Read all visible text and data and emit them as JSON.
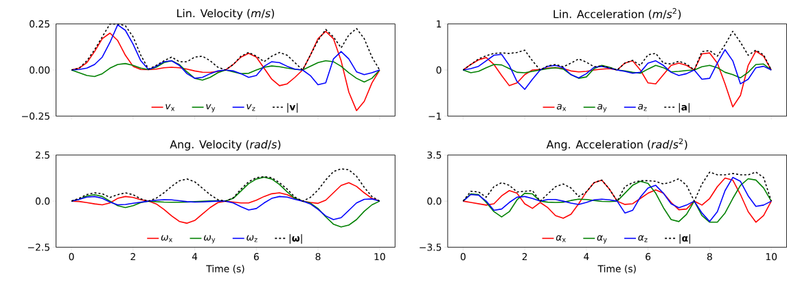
{
  "chart_data": [
    {
      "type": "line",
      "title": "Lin. Velocity (*m*/*s*)",
      "xlim": [
        -0.5,
        10.5
      ],
      "ylim": [
        -0.25,
        0.25
      ],
      "xticks": [
        0,
        2,
        4,
        6,
        8,
        10
      ],
      "yticks": [
        {
          "value": -0.25,
          "label": "−0.25"
        },
        {
          "value": 0,
          "label": "0.00"
        },
        {
          "value": 0.25,
          "label": "0.25"
        }
      ],
      "tick_labels": "y",
      "legend": "bottom",
      "line_style": "solid",
      "x": [
        0,
        0.25,
        0.5,
        0.75,
        1,
        1.25,
        1.5,
        1.75,
        2,
        2.25,
        2.5,
        2.75,
        3,
        3.25,
        3.5,
        3.75,
        4,
        4.25,
        4.5,
        4.75,
        5,
        5.25,
        5.5,
        5.75,
        6,
        6.25,
        6.5,
        6.75,
        7,
        7.25,
        7.5,
        7.75,
        8,
        8.25,
        8.5,
        8.75,
        9,
        9.25,
        9.5,
        9.75,
        10
      ],
      "series": [
        {
          "name": "*v*$_{x}$",
          "color": "#ff0000",
          "values": [
            0,
            0.01,
            0.04,
            0.1,
            0.17,
            0.2,
            0.16,
            0.08,
            0.02,
            0.003,
            0.002,
            0.005,
            0.012,
            0.015,
            0.012,
            0.005,
            -0.005,
            -0.012,
            -0.013,
            -0.008,
            0,
            0.03,
            0.07,
            0.09,
            0.07,
            0.01,
            -0.05,
            -0.085,
            -0.075,
            -0.04,
            0,
            0.08,
            0.17,
            0.21,
            0.17,
            0.05,
            -0.12,
            -0.22,
            -0.17,
            -0.07,
            0
          ]
        },
        {
          "name": "*v*$_{y}$",
          "color": "#008000",
          "values": [
            0,
            -0.015,
            -0.03,
            -0.035,
            -0.02,
            0.01,
            0.03,
            0.035,
            0.025,
            0.01,
            0.002,
            0.015,
            0.04,
            0.05,
            0.03,
            -0.01,
            -0.045,
            -0.055,
            -0.04,
            -0.015,
            0,
            -0.01,
            -0.02,
            -0.018,
            0,
            0.015,
            0.022,
            0.018,
            0.01,
            0.004,
            0,
            0.02,
            0.04,
            0.05,
            0.045,
            0.02,
            -0.015,
            -0.045,
            -0.065,
            -0.045,
            0
          ]
        },
        {
          "name": "*v*$_{z}$",
          "color": "#0000ff",
          "values": [
            0,
            0.003,
            0.01,
            0.03,
            0.07,
            0.15,
            0.245,
            0.215,
            0.14,
            0.05,
            0.003,
            0.02,
            0.045,
            0.05,
            0.025,
            -0.02,
            -0.045,
            -0.04,
            -0.02,
            -0.005,
            0,
            -0.005,
            -0.02,
            -0.04,
            -0.03,
            0.02,
            0.045,
            0.04,
            0.02,
            0.005,
            0,
            -0.03,
            -0.08,
            -0.07,
            0.06,
            0.1,
            0.06,
            -0.01,
            -0.025,
            -0.015,
            0
          ]
        },
        {
          "name": "|**v**|",
          "color": "#000000",
          "line_style": "dashed",
          "values": [
            0,
            0.01,
            0.05,
            0.11,
            0.18,
            0.25,
            0.25,
            0.24,
            0.18,
            0.08,
            0.005,
            0.025,
            0.05,
            0.07,
            0.045,
            0.045,
            0.07,
            0.075,
            0.05,
            0.015,
            0,
            0.03,
            0.075,
            0.095,
            0.075,
            0.045,
            0.075,
            0.095,
            0.08,
            0.04,
            0,
            0.08,
            0.16,
            0.22,
            0.18,
            0.12,
            0.19,
            0.225,
            0.17,
            0.07,
            0
          ]
        }
      ]
    },
    {
      "type": "line",
      "title": "Lin. Acceleration (*m*/*s*$^{2}$)",
      "xlim": [
        -0.5,
        10.5
      ],
      "ylim": [
        -1,
        1
      ],
      "xticks": [
        0,
        2,
        4,
        6,
        8,
        10
      ],
      "yticks": [
        {
          "value": -1,
          "label": "−1"
        },
        0,
        1
      ],
      "tick_labels": "y",
      "legend": "bottom",
      "line_style": "solid",
      "x": [
        0,
        0.25,
        0.5,
        0.75,
        1,
        1.25,
        1.5,
        1.75,
        2,
        2.25,
        2.5,
        2.75,
        3,
        3.25,
        3.5,
        3.75,
        4,
        4.25,
        4.5,
        4.75,
        5,
        5.25,
        5.5,
        5.75,
        6,
        6.25,
        6.5,
        6.75,
        7,
        7.25,
        7.5,
        7.75,
        8,
        8.25,
        8.5,
        8.75,
        9,
        9.25,
        9.5,
        9.75,
        10
      ],
      "series": [
        {
          "name": "*a*$_{x}$",
          "color": "#ff0000",
          "values": [
            0,
            0.12,
            0.22,
            0.27,
            0.12,
            -0.12,
            -0.34,
            -0.28,
            -0.1,
            0,
            0.01,
            0.04,
            0.05,
            0.03,
            -0.02,
            -0.04,
            -0.03,
            0,
            0.02,
            0.03,
            0,
            0.15,
            0.2,
            0,
            -0.28,
            -0.3,
            -0.1,
            0.1,
            0.15,
            0.1,
            0,
            0.35,
            0.37,
            0.15,
            -0.3,
            -0.8,
            -0.55,
            0.1,
            0.41,
            0.3,
            0
          ]
        },
        {
          "name": "*a*$_{y}$",
          "color": "#008000",
          "values": [
            0,
            -0.06,
            -0.03,
            0.05,
            0.12,
            0.11,
            0.03,
            -0.05,
            -0.06,
            -0.03,
            0,
            0.03,
            0.05,
            0.02,
            -0.1,
            -0.18,
            -0.15,
            0.03,
            0.1,
            0.06,
            0,
            -0.02,
            -0.05,
            -0.07,
            0.02,
            0.1,
            0.05,
            -0.04,
            -0.03,
            -0.01,
            0,
            0.07,
            0.1,
            0.05,
            -0.05,
            -0.1,
            -0.17,
            -0.05,
            0.12,
            0.13,
            0
          ]
        },
        {
          "name": "*a*$_{z}$",
          "color": "#0000ff",
          "values": [
            0,
            0.03,
            0.08,
            0.2,
            0.32,
            0.34,
            0.1,
            -0.25,
            -0.42,
            -0.2,
            0,
            0.08,
            0.1,
            0.05,
            -0.1,
            -0.17,
            -0.08,
            0.06,
            0.08,
            0.04,
            0,
            -0.03,
            -0.07,
            -0.05,
            0.15,
            0.2,
            0.1,
            -0.05,
            -0.12,
            -0.08,
            0,
            -0.2,
            -0.18,
            0.15,
            0.44,
            0.2,
            -0.3,
            -0.2,
            0.05,
            0.08,
            0
          ]
        },
        {
          "name": "|**a**|",
          "color": "#000000",
          "line_style": "dashed",
          "values": [
            0,
            0.12,
            0.24,
            0.31,
            0.36,
            0.37,
            0.36,
            0.38,
            0.43,
            0.2,
            0,
            0.09,
            0.12,
            0.07,
            0.15,
            0.24,
            0.17,
            0.07,
            0.09,
            0.05,
            0,
            0.15,
            0.21,
            0.1,
            0.33,
            0.36,
            0.15,
            0.13,
            0.19,
            0.13,
            0,
            0.4,
            0.42,
            0.3,
            0.55,
            0.84,
            0.6,
            0.32,
            0.43,
            0.33,
            0
          ]
        }
      ]
    },
    {
      "type": "line",
      "title": "Ang. Velocity (*rad*/*s*)",
      "xlabel": "Time (s)",
      "xlim": [
        -0.5,
        10.5
      ],
      "ylim": [
        -2.5,
        2.5
      ],
      "xticks": [
        0,
        2,
        4,
        6,
        8,
        10
      ],
      "yticks": [
        {
          "value": -2.5,
          "label": "−2.5"
        },
        {
          "value": 0,
          "label": "0.0"
        },
        2.5
      ],
      "legend": "bottom",
      "line_style": "solid",
      "x": [
        0,
        0.25,
        0.5,
        0.75,
        1,
        1.25,
        1.5,
        1.75,
        2,
        2.25,
        2.5,
        2.75,
        3,
        3.25,
        3.5,
        3.75,
        4,
        4.25,
        4.5,
        4.75,
        5,
        5.25,
        5.5,
        5.75,
        6,
        6.25,
        6.5,
        6.75,
        7,
        7.25,
        7.5,
        7.75,
        8,
        8.25,
        8.5,
        8.75,
        9,
        9.25,
        9.5,
        9.75,
        10
      ],
      "series": [
        {
          "name": "*ω*$_{x}$",
          "color": "#ff0000",
          "values": [
            0,
            -0.02,
            -0.08,
            -0.15,
            -0.2,
            -0.1,
            0.15,
            0.25,
            0.2,
            0.08,
            0,
            -0.15,
            -0.45,
            -0.8,
            -1.1,
            -1.2,
            -1.05,
            -0.7,
            -0.35,
            -0.08,
            0,
            -0.05,
            -0.1,
            -0.1,
            0.05,
            0.25,
            0.4,
            0.45,
            0.35,
            0.15,
            0,
            -0.07,
            -0.12,
            0.05,
            0.45,
            0.85,
            1,
            0.8,
            0.45,
            0.15,
            0
          ]
        },
        {
          "name": "*ω*$_{y}$",
          "color": "#008000",
          "values": [
            0,
            0.1,
            0.28,
            0.35,
            0.25,
            0,
            -0.25,
            -0.35,
            -0.25,
            -0.08,
            0,
            -0.03,
            -0.05,
            -0.06,
            -0.06,
            -0.05,
            -0.03,
            -0.01,
            0.01,
            0.02,
            0,
            0.15,
            0.55,
            0.95,
            1.2,
            1.3,
            1.2,
            0.9,
            0.5,
            0.15,
            0,
            -0.1,
            -0.4,
            -0.85,
            -1.25,
            -1.4,
            -1.3,
            -1,
            -0.55,
            -0.2,
            0
          ]
        },
        {
          "name": "*ω*$_{z}$",
          "color": "#0000ff",
          "values": [
            0,
            0.1,
            0.22,
            0.25,
            0.15,
            -0.05,
            -0.2,
            -0.18,
            -0.12,
            -0.06,
            0,
            0.05,
            0.08,
            0.07,
            0.02,
            -0.03,
            -0.05,
            -0.04,
            -0.02,
            0,
            0,
            -0.1,
            -0.3,
            -0.48,
            -0.4,
            -0.1,
            0.15,
            0.25,
            0.22,
            0.1,
            0,
            -0.15,
            -0.45,
            -0.8,
            -1,
            -0.9,
            -0.5,
            -0.1,
            0.1,
            0.12,
            0
          ]
        },
        {
          "name": "|**ω**|",
          "color": "#000000",
          "line_style": "dashed",
          "values": [
            0,
            0.15,
            0.36,
            0.45,
            0.4,
            0.2,
            0.35,
            0.45,
            0.35,
            0.12,
            0,
            0.16,
            0.45,
            0.8,
            1.1,
            1.2,
            1.05,
            0.7,
            0.35,
            0.08,
            0,
            0.18,
            0.65,
            1.05,
            1.27,
            1.33,
            1.27,
            1,
            0.65,
            0.22,
            0,
            0.2,
            0.6,
            1.15,
            1.6,
            1.75,
            1.7,
            1.35,
            0.75,
            0.25,
            0
          ]
        }
      ]
    },
    {
      "type": "line",
      "title": "Ang. Acceleration (*rad*/*s*$^{2}$)",
      "xlabel": "Time (s)",
      "xlim": [
        -0.5,
        10.5
      ],
      "ylim": [
        -3.5,
        3.5
      ],
      "xticks": [
        0,
        2,
        4,
        6,
        8,
        10
      ],
      "yticks": [
        {
          "value": -3.5,
          "label": "−3.5"
        },
        {
          "value": 0,
          "label": "0.0"
        },
        3.5
      ],
      "legend": "bottom",
      "line_style": "solid",
      "x": [
        0,
        0.25,
        0.5,
        0.75,
        1,
        1.25,
        1.5,
        1.75,
        2,
        2.25,
        2.5,
        2.75,
        3,
        3.25,
        3.5,
        3.75,
        4,
        4.25,
        4.5,
        4.75,
        5,
        5.25,
        5.5,
        5.75,
        6,
        6.25,
        6.5,
        6.75,
        7,
        7.25,
        7.5,
        7.75,
        8,
        8.25,
        8.5,
        8.75,
        9,
        9.25,
        9.5,
        9.75,
        10
      ],
      "series": [
        {
          "name": "*α*$_{x}$",
          "color": "#ff0000",
          "values": [
            0,
            -0.1,
            -0.2,
            -0.3,
            -0.2,
            0.4,
            0.8,
            0.6,
            -0.2,
            -0.55,
            -0.1,
            -0.5,
            -1.1,
            -1.3,
            -1,
            -0.2,
            0.7,
            1.4,
            1.6,
            0.9,
            0,
            -0.25,
            -0.2,
            0.2,
            0.6,
            0.85,
            0.6,
            -0.1,
            -0.65,
            -0.6,
            0,
            -0.3,
            0.2,
            1.1,
            1.75,
            1.6,
            0.5,
            -0.8,
            -1.6,
            -1.1,
            0
          ]
        },
        {
          "name": "*α*$_{y}$",
          "color": "#008000",
          "values": [
            0,
            0.55,
            0.5,
            -0.1,
            -0.8,
            -1.2,
            -0.8,
            0.1,
            0.6,
            0.55,
            0,
            -0.08,
            -0.1,
            -0.08,
            0.05,
            0.15,
            0.12,
            0.05,
            -0.02,
            -0.03,
            0,
            0.6,
            1.2,
            1.5,
            1.35,
            0.6,
            -0.5,
            -1.4,
            -1.55,
            -1,
            0,
            -1.1,
            -1.6,
            -1.6,
            -0.9,
            0.2,
            1.2,
            1.7,
            1.6,
            1,
            0
          ]
        },
        {
          "name": "*α*$_{z}$",
          "color": "#0000ff",
          "values": [
            0,
            0.5,
            0.45,
            0,
            -0.7,
            -0.6,
            -0.1,
            0.3,
            0.35,
            0.2,
            0,
            0.12,
            0.12,
            0,
            -0.15,
            -0.25,
            -0.1,
            0.1,
            0.15,
            0.1,
            0,
            -0.9,
            -0.7,
            0.3,
            1,
            1.2,
            0.6,
            -0.2,
            -0.5,
            -0.3,
            0,
            -0.9,
            -1.55,
            -0.8,
            0.8,
            1.8,
            1.5,
            0.4,
            -0.4,
            -0.3,
            0
          ]
        },
        {
          "name": "|**α**|",
          "color": "#000000",
          "line_style": "dashed",
          "values": [
            0,
            0.75,
            0.7,
            0.3,
            1.1,
            1.4,
            1.2,
            0.7,
            0.75,
            0.8,
            0,
            0.55,
            1.1,
            1.3,
            1,
            0.35,
            0.7,
            1.4,
            1.6,
            0.9,
            0,
            1.1,
            1.4,
            1.55,
            1.55,
            1.5,
            1.3,
            1.45,
            1.7,
            1.2,
            0,
            1.3,
            2.2,
            2,
            2,
            2.1,
            2,
            2,
            2.2,
            1.8,
            0
          ]
        }
      ]
    }
  ]
}
